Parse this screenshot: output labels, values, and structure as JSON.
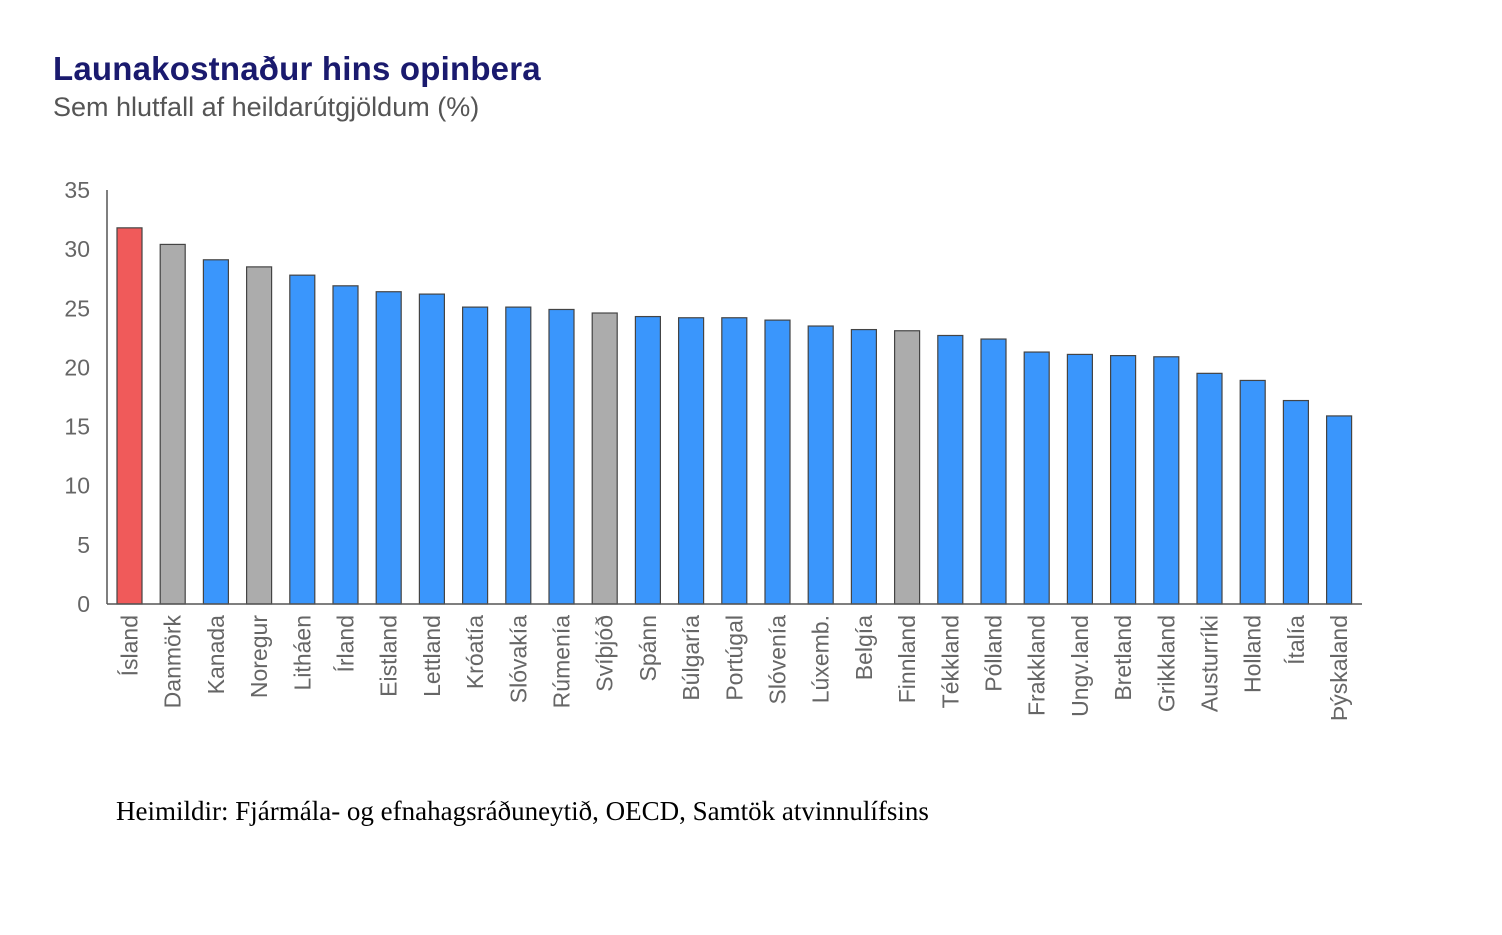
{
  "chart_data": {
    "type": "bar",
    "title": "Launakostnaður hins opinbera",
    "subtitle": "Sem hlutfall af heildarútgjöldum (%)",
    "xlabel": "",
    "ylabel": "",
    "ylim": [
      0,
      35
    ],
    "yticks": [
      0,
      5,
      10,
      15,
      20,
      25,
      30,
      35
    ],
    "grid": false,
    "categories": [
      "Ísland",
      "Danmörk",
      "Kanada",
      "Noregur",
      "Litháen",
      "Írland",
      "Eistland",
      "Lettland",
      "Króatía",
      "Slóvakía",
      "Rúmenía",
      "Svíþjóð",
      "Spánn",
      "Búlgaría",
      "Portúgal",
      "Slóvenía",
      "Lúxemb.",
      "Belgía",
      "Finnland",
      "Tékkland",
      "Pólland",
      "Frakkland",
      "Ungv.land",
      "Bretland",
      "Grikkland",
      "Austurríki",
      "Holland",
      "Ítalía",
      "Þýskaland"
    ],
    "values": [
      31.8,
      30.4,
      29.1,
      28.5,
      27.8,
      26.9,
      26.4,
      26.2,
      25.1,
      25.1,
      24.9,
      24.6,
      24.3,
      24.2,
      24.2,
      24.0,
      23.5,
      23.2,
      23.1,
      22.7,
      22.4,
      21.3,
      21.1,
      21.0,
      20.9,
      19.5,
      18.9,
      17.2,
      15.9
    ],
    "bar_colors": [
      "#f05a5a",
      "#acacac",
      "#3a96fc",
      "#acacac",
      "#3a96fc",
      "#3a96fc",
      "#3a96fc",
      "#3a96fc",
      "#3a96fc",
      "#3a96fc",
      "#3a96fc",
      "#acacac",
      "#3a96fc",
      "#3a96fc",
      "#3a96fc",
      "#3a96fc",
      "#3a96fc",
      "#3a96fc",
      "#acacac",
      "#3a96fc",
      "#3a96fc",
      "#3a96fc",
      "#3a96fc",
      "#3a96fc",
      "#3a96fc",
      "#3a96fc",
      "#3a96fc",
      "#3a96fc",
      "#3a96fc"
    ]
  },
  "source": "Heimildir:  Fjármála- og efnahagsráðuneytið, OECD, Samtök atvinnulífsins"
}
